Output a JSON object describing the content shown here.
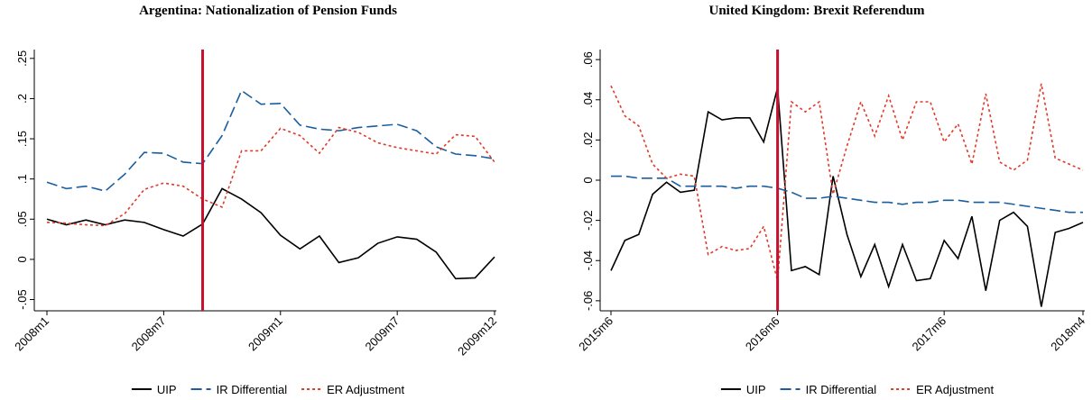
{
  "chart_data": [
    {
      "type": "line",
      "title": "Argentina: Nationalization of Pension Funds",
      "categories": [
        "2008m1",
        null,
        null,
        null,
        null,
        null,
        "2008m7",
        null,
        null,
        null,
        null,
        null,
        "2009m1",
        null,
        null,
        null,
        null,
        null,
        "2009m7",
        null,
        null,
        null,
        null,
        "2009m12"
      ],
      "ylim": [
        -0.064,
        0.261
      ],
      "yticks": [
        {
          "value": -0.05,
          "label": "-.05"
        },
        0,
        {
          "value": 0.05,
          "label": ".05"
        },
        {
          "value": 0.1,
          "label": ".1"
        },
        {
          "value": 0.15,
          "label": ".15"
        },
        {
          "value": 0.2,
          "label": ".2"
        },
        {
          "value": 0.25,
          "label": ".25"
        }
      ],
      "vline": {
        "x": 8,
        "color": "#c8102e"
      },
      "series": [
        {
          "name": "UIP",
          "color": "#000000",
          "dash": "solid",
          "values": [
            0.05,
            0.043,
            0.049,
            0.043,
            0.049,
            0.046,
            0.037,
            0.029,
            0.044,
            0.088,
            0.075,
            0.058,
            0.03,
            0.013,
            0.029,
            -0.004,
            0.002,
            0.02,
            0.028,
            0.025,
            0.009,
            -0.024,
            -0.023,
            0.003
          ]
        },
        {
          "name": "IR Differential",
          "color": "#1a5e9e",
          "dash": "longdash",
          "values": [
            0.096,
            0.088,
            0.091,
            0.085,
            0.106,
            0.133,
            0.132,
            0.121,
            0.119,
            0.154,
            0.21,
            0.193,
            0.194,
            0.167,
            0.162,
            0.16,
            0.164,
            0.166,
            0.168,
            0.16,
            0.14,
            0.131,
            0.129,
            0.125
          ]
        },
        {
          "name": "ER Adjustment",
          "color": "#e03a2a",
          "dash": "shortdash",
          "values": [
            0.046,
            0.045,
            0.043,
            0.042,
            0.057,
            0.087,
            0.095,
            0.091,
            0.075,
            0.065,
            0.135,
            0.135,
            0.163,
            0.154,
            0.132,
            0.164,
            0.158,
            0.145,
            0.139,
            0.135,
            0.131,
            0.155,
            0.153,
            0.121
          ]
        }
      ]
    },
    {
      "type": "line",
      "title": "United Kingdom: Brexit Referendum",
      "categories": [
        "2015m6",
        null,
        null,
        null,
        null,
        null,
        null,
        null,
        null,
        null,
        null,
        null,
        "2016m6",
        null,
        null,
        null,
        null,
        null,
        null,
        null,
        null,
        null,
        null,
        null,
        "2017m6",
        null,
        null,
        null,
        null,
        null,
        null,
        null,
        null,
        null,
        "2018m4"
      ],
      "ylim": [
        -0.065,
        0.065
      ],
      "yticks": [
        {
          "value": -0.06,
          "label": "-.06"
        },
        {
          "value": -0.04,
          "label": "-.04"
        },
        {
          "value": -0.02,
          "label": "-.02"
        },
        0,
        {
          "value": 0.02,
          "label": ".02"
        },
        {
          "value": 0.04,
          "label": ".04"
        },
        {
          "value": 0.06,
          "label": ".06"
        }
      ],
      "vline": {
        "x": 12,
        "color": "#c8102e"
      },
      "series": [
        {
          "name": "UIP",
          "color": "#000000",
          "dash": "solid",
          "values": [
            -0.045,
            -0.03,
            -0.027,
            -0.007,
            -0.001,
            -0.006,
            -0.005,
            0.034,
            0.03,
            0.031,
            0.031,
            0.019,
            0.046,
            -0.045,
            -0.043,
            -0.047,
            0.002,
            -0.027,
            -0.048,
            -0.032,
            -0.053,
            -0.032,
            -0.05,
            -0.049,
            -0.03,
            -0.039,
            -0.018,
            -0.055,
            -0.02,
            -0.016,
            -0.023,
            -0.063,
            -0.026,
            -0.024,
            -0.021
          ]
        },
        {
          "name": "IR Differential",
          "color": "#1a5e9e",
          "dash": "longdash",
          "values": [
            0.002,
            0.002,
            0.001,
            0.001,
            0.001,
            -0.003,
            -0.003,
            -0.003,
            -0.003,
            -0.004,
            -0.003,
            -0.003,
            -0.004,
            -0.006,
            -0.009,
            -0.009,
            -0.008,
            -0.009,
            -0.01,
            -0.011,
            -0.011,
            -0.012,
            -0.011,
            -0.011,
            -0.01,
            -0.01,
            -0.011,
            -0.011,
            -0.011,
            -0.012,
            -0.013,
            -0.014,
            -0.015,
            -0.016,
            -0.016
          ]
        },
        {
          "name": "ER Adjustment",
          "color": "#e03a2a",
          "dash": "shortdash",
          "values": [
            0.047,
            0.032,
            0.027,
            0.008,
            0.001,
            0.003,
            0.002,
            -0.037,
            -0.033,
            -0.035,
            -0.034,
            -0.023,
            -0.05,
            0.039,
            0.034,
            0.039,
            -0.007,
            0.017,
            0.039,
            0.022,
            0.042,
            0.02,
            0.039,
            0.039,
            0.019,
            0.028,
            0.008,
            0.043,
            0.009,
            0.005,
            0.01,
            0.048,
            0.011,
            0.008,
            0.005
          ]
        }
      ]
    }
  ]
}
